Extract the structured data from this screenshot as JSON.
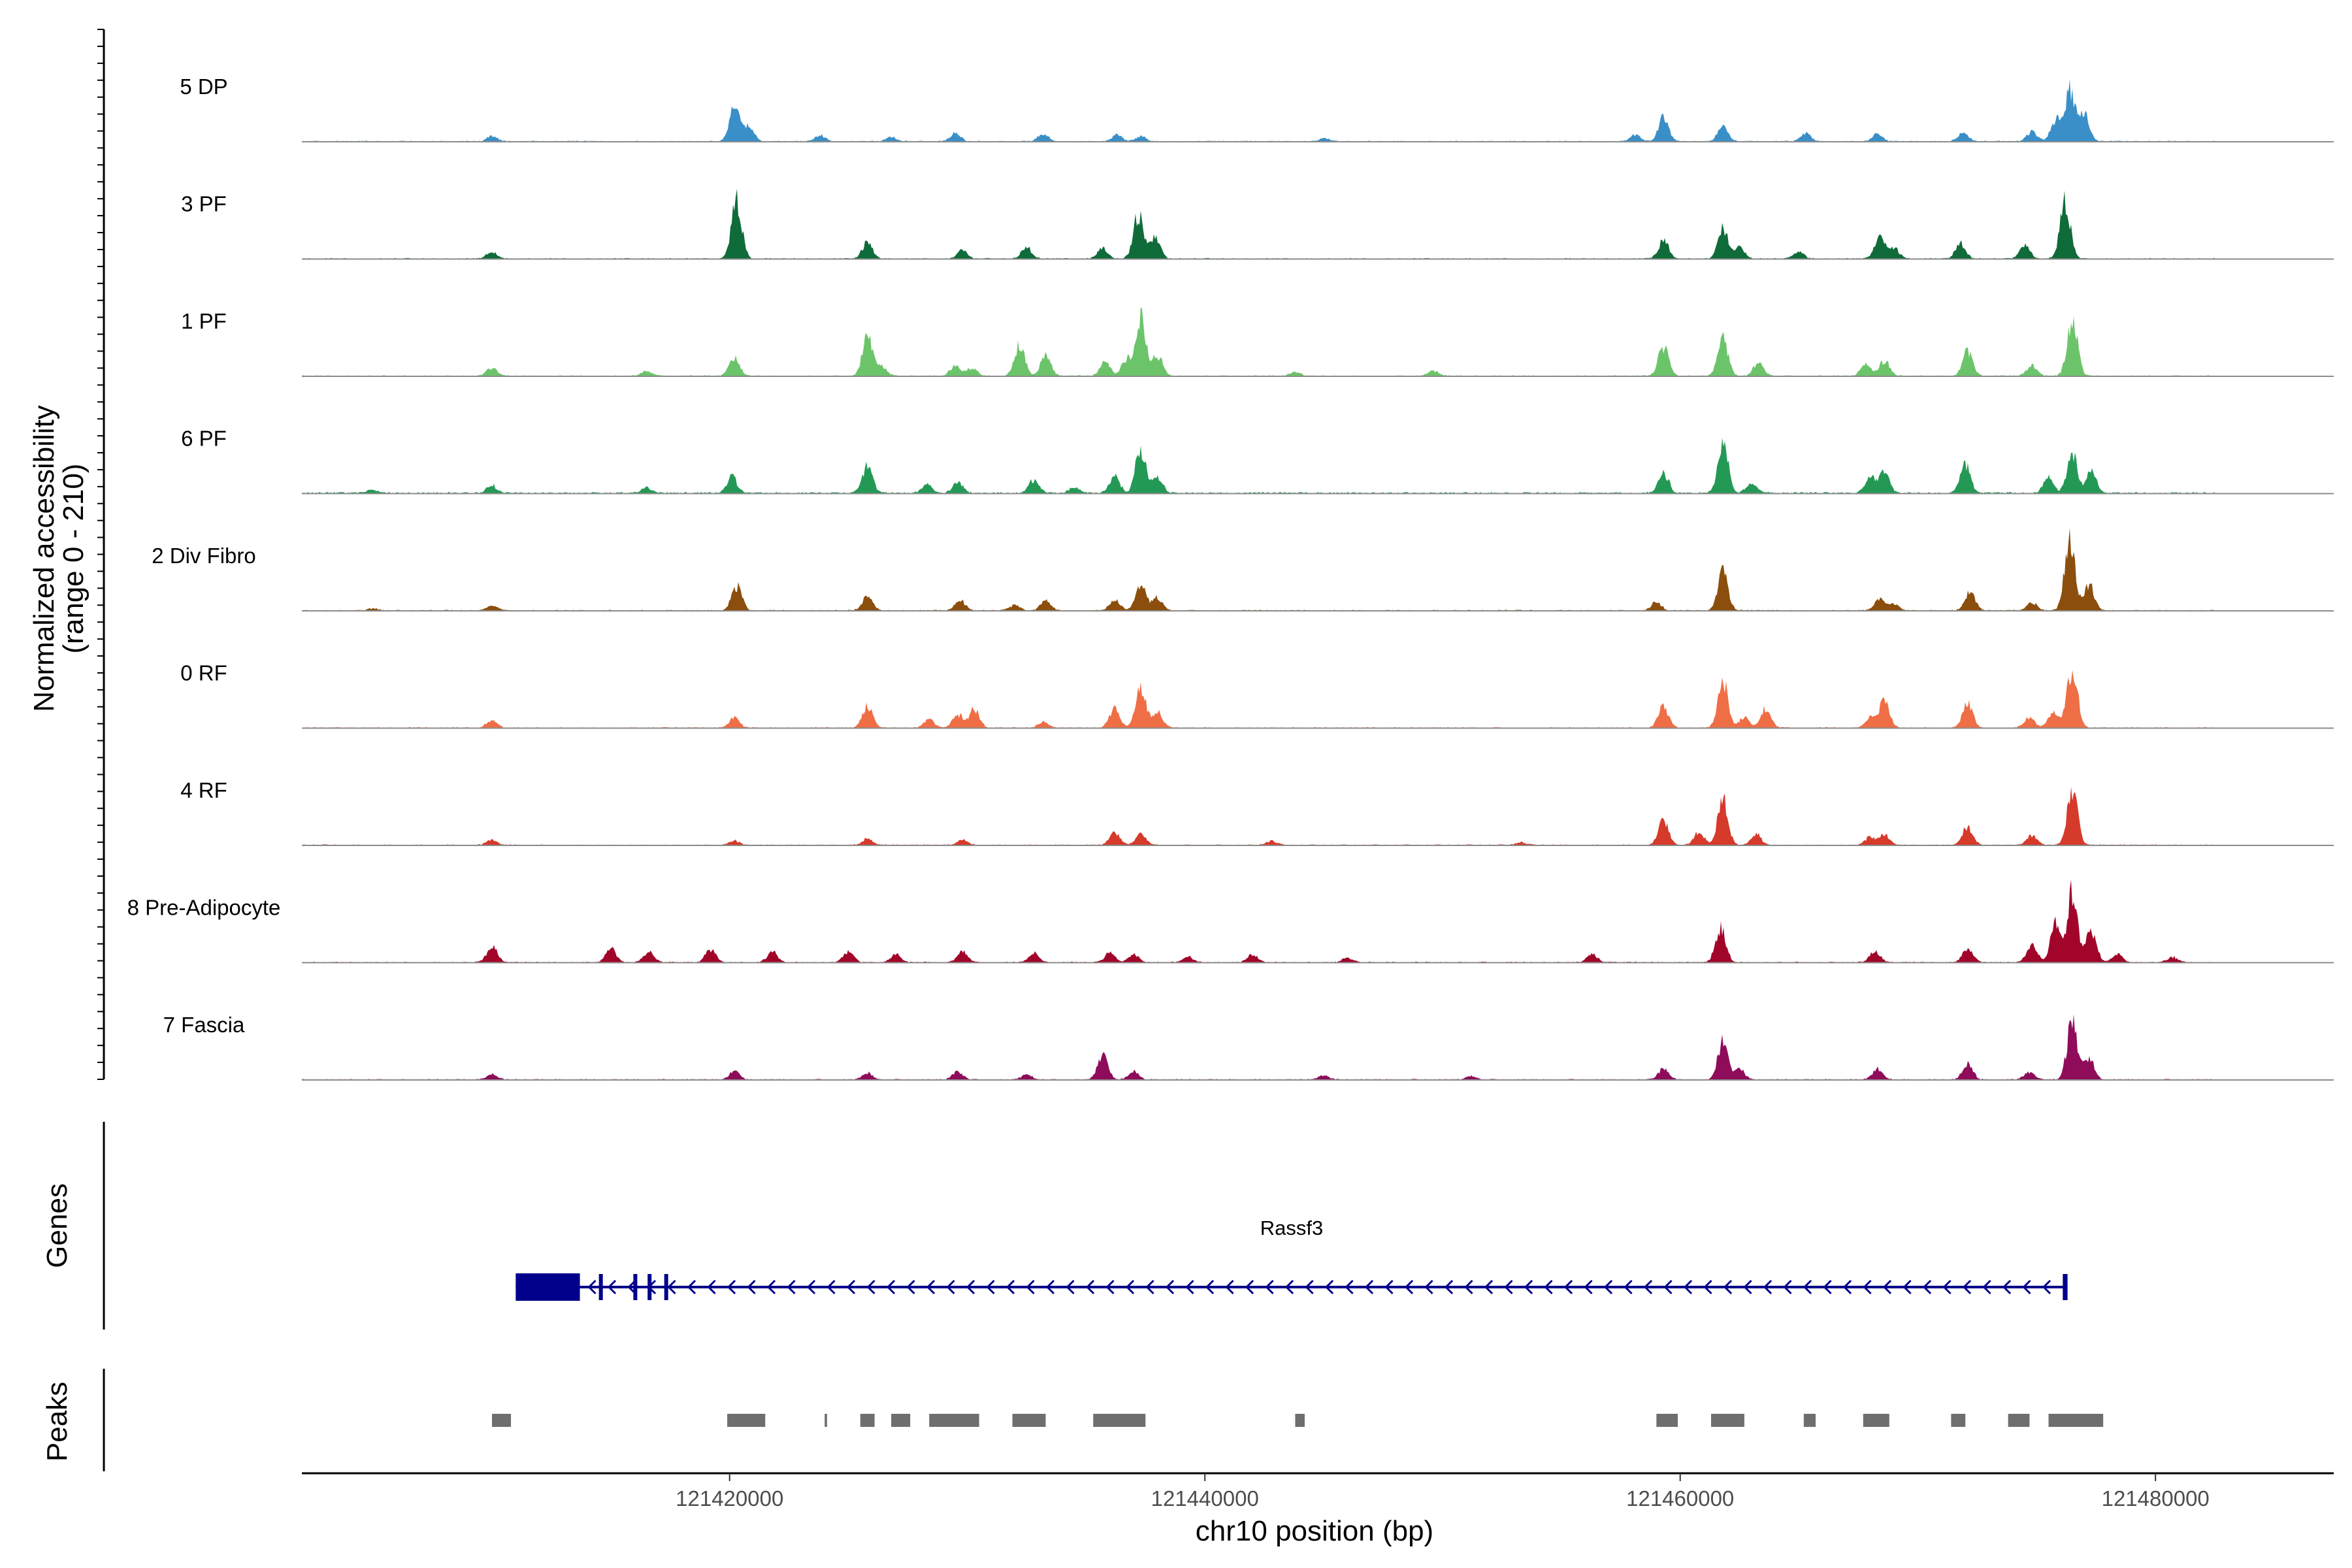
{
  "chart_data": {
    "type": "coverage",
    "ylabel_line1": "Normalized accessibility",
    "ylabel_line2": "(range 0 - 210)",
    "y_range": [
      0,
      210
    ],
    "xlabel": "chr10 position (bp)",
    "xlim": [
      121402000,
      121487500
    ],
    "x_ticks": [
      121420000,
      121440000,
      121460000,
      121480000
    ],
    "x_tick_labels": [
      "121420000",
      "121440000",
      "121460000",
      "121480000"
    ],
    "coverage_start": 121402000,
    "coverage_end": 121482500,
    "tracks": [
      {
        "name": "5 DP",
        "color": "#3a8fc8",
        "baseline": 2,
        "peaks": [
          [
            121410000,
            10
          ],
          [
            121420200,
            60
          ],
          [
            121420800,
            30
          ],
          [
            121423800,
            12
          ],
          [
            121426800,
            8
          ],
          [
            121429500,
            15
          ],
          [
            121433200,
            14
          ],
          [
            121436300,
            12
          ],
          [
            121437300,
            10
          ],
          [
            121445000,
            6
          ],
          [
            121458100,
            12
          ],
          [
            121459300,
            45
          ],
          [
            121461800,
            30
          ],
          [
            121465300,
            15
          ],
          [
            121468300,
            14
          ],
          [
            121471900,
            16
          ],
          [
            121474800,
            18
          ],
          [
            121475800,
            40
          ],
          [
            121476400,
            95
          ],
          [
            121477000,
            50
          ]
        ]
      },
      {
        "name": "3 PF",
        "color": "#0f6b39",
        "baseline": 2,
        "peaks": [
          [
            121410000,
            12
          ],
          [
            121420300,
            110
          ],
          [
            121425800,
            30
          ],
          [
            121429800,
            15
          ],
          [
            121432500,
            22
          ],
          [
            121435700,
            20
          ],
          [
            121437200,
            80
          ],
          [
            121437900,
            40
          ],
          [
            121459300,
            35
          ],
          [
            121461800,
            55
          ],
          [
            121462500,
            20
          ],
          [
            121465000,
            12
          ],
          [
            121468400,
            40
          ],
          [
            121469000,
            20
          ],
          [
            121471800,
            30
          ],
          [
            121474500,
            25
          ],
          [
            121476200,
            110
          ]
        ]
      },
      {
        "name": "1 PF",
        "color": "#6cc46a",
        "baseline": 2,
        "peaks": [
          [
            121410000,
            15
          ],
          [
            121416500,
            10
          ],
          [
            121420200,
            35
          ],
          [
            121425800,
            75
          ],
          [
            121426400,
            18
          ],
          [
            121429500,
            20
          ],
          [
            121430200,
            15
          ],
          [
            121432200,
            60
          ],
          [
            121433300,
            40
          ],
          [
            121435800,
            25
          ],
          [
            121436700,
            30
          ],
          [
            121437300,
            105
          ],
          [
            121438000,
            40
          ],
          [
            121443800,
            8
          ],
          [
            121449600,
            10
          ],
          [
            121459300,
            55
          ],
          [
            121461800,
            70
          ],
          [
            121463300,
            25
          ],
          [
            121467800,
            22
          ],
          [
            121468600,
            30
          ],
          [
            121472100,
            45
          ],
          [
            121474800,
            20
          ],
          [
            121476500,
            110
          ]
        ]
      },
      {
        "name": "6 PF",
        "color": "#249955",
        "baseline": 3,
        "peaks": [
          [
            121405000,
            6
          ],
          [
            121410000,
            15
          ],
          [
            121416500,
            10
          ],
          [
            121420100,
            30
          ],
          [
            121425800,
            50
          ],
          [
            121428300,
            15
          ],
          [
            121429600,
            20
          ],
          [
            121432800,
            25
          ],
          [
            121434500,
            10
          ],
          [
            121436200,
            30
          ],
          [
            121437300,
            85
          ],
          [
            121438000,
            30
          ],
          [
            121459300,
            38
          ],
          [
            121461800,
            92
          ],
          [
            121463000,
            20
          ],
          [
            121468000,
            30
          ],
          [
            121468600,
            40
          ],
          [
            121472000,
            52
          ],
          [
            121475500,
            30
          ],
          [
            121476500,
            72
          ],
          [
            121477300,
            40
          ]
        ]
      },
      {
        "name": "2 Div Fibro",
        "color": "#8b4e0c",
        "baseline": 2,
        "peaks": [
          [
            121405000,
            4
          ],
          [
            121410000,
            10
          ],
          [
            121420300,
            45
          ],
          [
            121425800,
            25
          ],
          [
            121429700,
            20
          ],
          [
            121432000,
            10
          ],
          [
            121433300,
            20
          ],
          [
            121436200,
            20
          ],
          [
            121437300,
            48
          ],
          [
            121438000,
            25
          ],
          [
            121459000,
            15
          ],
          [
            121461800,
            70
          ],
          [
            121468400,
            20
          ],
          [
            121469000,
            12
          ],
          [
            121472200,
            35
          ],
          [
            121474800,
            15
          ],
          [
            121476400,
            145
          ],
          [
            121477200,
            50
          ]
        ]
      },
      {
        "name": "0 RF",
        "color": "#ef6e45",
        "baseline": 2,
        "peaks": [
          [
            121410000,
            15
          ],
          [
            121420200,
            18
          ],
          [
            121425800,
            40
          ],
          [
            121428400,
            15
          ],
          [
            121429600,
            25
          ],
          [
            121430300,
            35
          ],
          [
            121433200,
            10
          ],
          [
            121436200,
            35
          ],
          [
            121437300,
            75
          ],
          [
            121438000,
            30
          ],
          [
            121459300,
            40
          ],
          [
            121461800,
            85
          ],
          [
            121462700,
            20
          ],
          [
            121463600,
            35
          ],
          [
            121468000,
            20
          ],
          [
            121468600,
            50
          ],
          [
            121472100,
            45
          ],
          [
            121474700,
            20
          ],
          [
            121475700,
            30
          ],
          [
            121476500,
            115
          ]
        ]
      },
      {
        "name": "4 RF",
        "color": "#d63a2b",
        "baseline": 2,
        "peaks": [
          [
            121410000,
            10
          ],
          [
            121420200,
            8
          ],
          [
            121425800,
            12
          ],
          [
            121429800,
            10
          ],
          [
            121436200,
            25
          ],
          [
            121437300,
            20
          ],
          [
            121442800,
            8
          ],
          [
            121453300,
            5
          ],
          [
            121459300,
            50
          ],
          [
            121460800,
            25
          ],
          [
            121461800,
            85
          ],
          [
            121463200,
            20
          ],
          [
            121468000,
            15
          ],
          [
            121468600,
            20
          ],
          [
            121472100,
            35
          ],
          [
            121474800,
            18
          ],
          [
            121476500,
            105
          ]
        ]
      },
      {
        "name": "8 Pre-Adipocyte",
        "color": "#a1062a",
        "baseline": 2,
        "peaks": [
          [
            121410000,
            30
          ],
          [
            121415000,
            25
          ],
          [
            121416600,
            20
          ],
          [
            121419200,
            25
          ],
          [
            121421800,
            20
          ],
          [
            121425000,
            20
          ],
          [
            121427000,
            15
          ],
          [
            121429800,
            22
          ],
          [
            121432800,
            18
          ],
          [
            121437000,
            15
          ],
          [
            121436000,
            18
          ],
          [
            121439300,
            10
          ],
          [
            121442000,
            15
          ],
          [
            121446000,
            8
          ],
          [
            121456300,
            15
          ],
          [
            121461700,
            65
          ],
          [
            121468200,
            22
          ],
          [
            121472100,
            25
          ],
          [
            121474800,
            35
          ],
          [
            121475800,
            70
          ],
          [
            121476500,
            130
          ],
          [
            121477300,
            60
          ],
          [
            121478400,
            15
          ],
          [
            121480700,
            10
          ]
        ]
      },
      {
        "name": "7 Fascia",
        "color": "#8e0c5a",
        "baseline": 2,
        "peaks": [
          [
            121410000,
            10
          ],
          [
            121420200,
            15
          ],
          [
            121425800,
            12
          ],
          [
            121429600,
            15
          ],
          [
            121432500,
            10
          ],
          [
            121435700,
            45
          ],
          [
            121437000,
            15
          ],
          [
            121445000,
            8
          ],
          [
            121451200,
            6
          ],
          [
            121459300,
            20
          ],
          [
            121461800,
            70
          ],
          [
            121462500,
            20
          ],
          [
            121468300,
            20
          ],
          [
            121472100,
            30
          ],
          [
            121474700,
            15
          ],
          [
            121476500,
            110
          ],
          [
            121477200,
            40
          ]
        ]
      }
    ],
    "genes": [
      {
        "name": "Rassf3",
        "start": 121411000,
        "end": 121476300,
        "strand": "-",
        "exons": [
          [
            121411000,
            121413700
          ],
          [
            121414500,
            121414650
          ],
          [
            121415950,
            121416100
          ],
          [
            121416550,
            121416650
          ],
          [
            121417250,
            121417350
          ],
          [
            121476100,
            121476300
          ]
        ]
      }
    ],
    "gene_panel_label": "Genes",
    "peaks_panel_label": "Peaks",
    "peak_regions": [
      [
        121410000,
        121410800
      ],
      [
        121419900,
        121421500
      ],
      [
        121424000,
        121424100
      ],
      [
        121425500,
        121426100
      ],
      [
        121426800,
        121427600
      ],
      [
        121428400,
        121430500
      ],
      [
        121431900,
        121433300
      ],
      [
        121435300,
        121437500
      ],
      [
        121443800,
        121444200
      ],
      [
        121459000,
        121459900
      ],
      [
        121461300,
        121462700
      ],
      [
        121465200,
        121465700
      ],
      [
        121467700,
        121468800
      ],
      [
        121471400,
        121472000
      ],
      [
        121473800,
        121474700
      ],
      [
        121475500,
        121477800
      ]
    ],
    "colors": {
      "axis": "#000000",
      "baseline": "#8c8c8c",
      "gene": "#00008b",
      "peak_region": "#6e6e6e"
    }
  }
}
